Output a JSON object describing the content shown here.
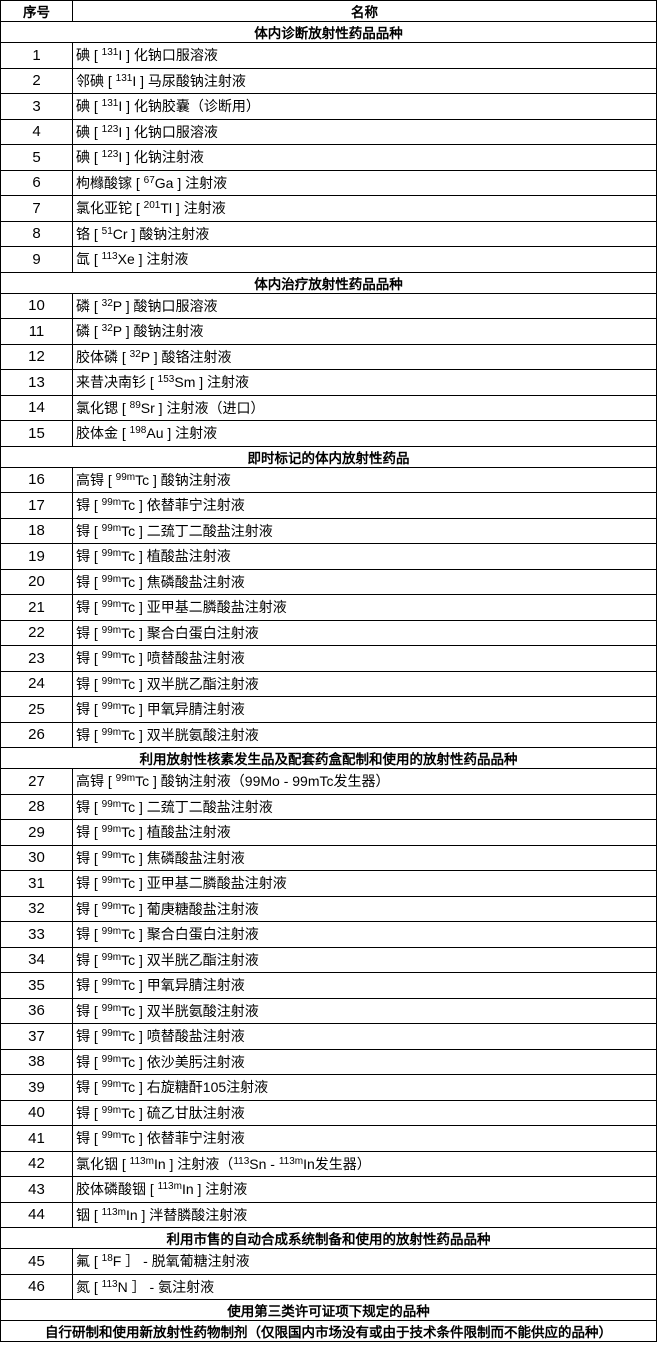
{
  "header": {
    "col_index": "序号",
    "col_name": "名称"
  },
  "sections": [
    {
      "title": "体内诊断放射性药品品种",
      "items": [
        {
          "no": "1",
          "name": [
            {
              "t": "碘 [ "
            },
            {
              "s": "131"
            },
            {
              "t": "I ] 化钠口服溶液"
            }
          ]
        },
        {
          "no": "2",
          "name": [
            {
              "t": "邻碘 [ "
            },
            {
              "s": "131"
            },
            {
              "t": "I ] 马尿酸钠注射液"
            }
          ]
        },
        {
          "no": "3",
          "name": [
            {
              "t": "碘 [ "
            },
            {
              "s": "131"
            },
            {
              "t": "I ] 化钠胶囊（诊断用）"
            }
          ]
        },
        {
          "no": "4",
          "name": [
            {
              "t": "碘 [ "
            },
            {
              "s": "123"
            },
            {
              "t": "I ] 化钠口服溶液"
            }
          ]
        },
        {
          "no": "5",
          "name": [
            {
              "t": "碘 [ "
            },
            {
              "s": "123"
            },
            {
              "t": "I ] 化钠注射液"
            }
          ]
        },
        {
          "no": "6",
          "name": [
            {
              "t": "枸橼酸镓 [ "
            },
            {
              "s": "67"
            },
            {
              "t": "Ga ] 注射液"
            }
          ]
        },
        {
          "no": "7",
          "name": [
            {
              "t": "氯化亚铊 [ "
            },
            {
              "s": "201"
            },
            {
              "t": "Tl ] 注射液"
            }
          ]
        },
        {
          "no": "8",
          "name": [
            {
              "t": "铬 [ "
            },
            {
              "s": "51"
            },
            {
              "t": "Cr ] 酸钠注射液"
            }
          ]
        },
        {
          "no": "9",
          "name": [
            {
              "t": "氙 [ "
            },
            {
              "s": "113"
            },
            {
              "t": "Xe ] 注射液"
            }
          ]
        }
      ]
    },
    {
      "title": "体内治疗放射性药品品种",
      "items": [
        {
          "no": "10",
          "name": [
            {
              "t": "磷 [ "
            },
            {
              "s": "32"
            },
            {
              "t": "P ] 酸钠口服溶液"
            }
          ]
        },
        {
          "no": "11",
          "name": [
            {
              "t": "磷 [ "
            },
            {
              "s": "32"
            },
            {
              "t": "P ] 酸钠注射液"
            }
          ]
        },
        {
          "no": "12",
          "name": [
            {
              "t": "胶体磷 [ "
            },
            {
              "s": "32"
            },
            {
              "t": "P ] 酸铬注射液"
            }
          ]
        },
        {
          "no": "13",
          "name": [
            {
              "t": "来昔决南钐 [ "
            },
            {
              "s": "153"
            },
            {
              "t": "Sm ] 注射液"
            }
          ]
        },
        {
          "no": "14",
          "name": [
            {
              "t": "氯化锶 [ "
            },
            {
              "s": "89"
            },
            {
              "t": "Sr ] 注射液（进口）"
            }
          ]
        },
        {
          "no": "15",
          "name": [
            {
              "t": "胶体金 [ "
            },
            {
              "s": "198"
            },
            {
              "t": "Au ] 注射液"
            }
          ]
        }
      ]
    },
    {
      "title": "即时标记的体内放射性药品",
      "items": [
        {
          "no": "16",
          "name": [
            {
              "t": "高锝 [ "
            },
            {
              "s": "99m"
            },
            {
              "t": "Tc ] 酸钠注射液"
            }
          ]
        },
        {
          "no": "17",
          "name": [
            {
              "t": "锝 [ "
            },
            {
              "s": "99m"
            },
            {
              "t": "Tc ] 依替菲宁注射液"
            }
          ]
        },
        {
          "no": "18",
          "name": [
            {
              "t": "锝 [ "
            },
            {
              "s": "99m"
            },
            {
              "t": "Tc ] 二巯丁二酸盐注射液"
            }
          ]
        },
        {
          "no": "19",
          "name": [
            {
              "t": "锝 [ "
            },
            {
              "s": "99m"
            },
            {
              "t": "Tc ] 植酸盐注射液"
            }
          ]
        },
        {
          "no": "20",
          "name": [
            {
              "t": "锝 [ "
            },
            {
              "s": "99m"
            },
            {
              "t": "Tc ] 焦磷酸盐注射液"
            }
          ]
        },
        {
          "no": "21",
          "name": [
            {
              "t": "锝 [ "
            },
            {
              "s": "99m"
            },
            {
              "t": "Tc ] 亚甲基二膦酸盐注射液"
            }
          ]
        },
        {
          "no": "22",
          "name": [
            {
              "t": "锝 [ "
            },
            {
              "s": "99m"
            },
            {
              "t": "Tc ] 聚合白蛋白注射液"
            }
          ]
        },
        {
          "no": "23",
          "name": [
            {
              "t": "锝 [ "
            },
            {
              "s": "99m"
            },
            {
              "t": "Tc ] 喷替酸盐注射液"
            }
          ]
        },
        {
          "no": "24",
          "name": [
            {
              "t": "锝 [ "
            },
            {
              "s": "99m"
            },
            {
              "t": "Tc ] 双半胱乙酯注射液"
            }
          ]
        },
        {
          "no": "25",
          "name": [
            {
              "t": "锝 [ "
            },
            {
              "s": "99m"
            },
            {
              "t": "Tc ] 甲氧异腈注射液"
            }
          ]
        },
        {
          "no": "26",
          "name": [
            {
              "t": "锝 [ "
            },
            {
              "s": "99m"
            },
            {
              "t": "Tc ] 双半胱氨酸注射液"
            }
          ]
        }
      ]
    },
    {
      "title": "利用放射性核素发生品及配套药盒配制和使用的放射性药品品种",
      "items": [
        {
          "no": "27",
          "name": [
            {
              "t": "高锝 [ "
            },
            {
              "s": "99m"
            },
            {
              "t": "Tc ] 酸钠注射液（99Mo - 99mTc发生器）"
            }
          ]
        },
        {
          "no": "28",
          "name": [
            {
              "t": "锝 [ "
            },
            {
              "s": "99m"
            },
            {
              "t": "Tc ] 二巯丁二酸盐注射液"
            }
          ]
        },
        {
          "no": "29",
          "name": [
            {
              "t": "锝 [ "
            },
            {
              "s": "99m"
            },
            {
              "t": "Tc ] 植酸盐注射液"
            }
          ]
        },
        {
          "no": "30",
          "name": [
            {
              "t": "锝 [ "
            },
            {
              "s": "99m"
            },
            {
              "t": "Tc ] 焦磷酸盐注射液"
            }
          ]
        },
        {
          "no": "31",
          "name": [
            {
              "t": "锝 [ "
            },
            {
              "s": "99m"
            },
            {
              "t": "Tc ] 亚甲基二膦酸盐注射液"
            }
          ]
        },
        {
          "no": "32",
          "name": [
            {
              "t": "锝 [ "
            },
            {
              "s": "99m"
            },
            {
              "t": "Tc ] 葡庚糖酸盐注射液"
            }
          ]
        },
        {
          "no": "33",
          "name": [
            {
              "t": "锝 [ "
            },
            {
              "s": "99m"
            },
            {
              "t": "Tc ] 聚合白蛋白注射液"
            }
          ]
        },
        {
          "no": "34",
          "name": [
            {
              "t": "锝 [ "
            },
            {
              "s": "99m"
            },
            {
              "t": "Tc ] 双半胱乙酯注射液"
            }
          ]
        },
        {
          "no": "35",
          "name": [
            {
              "t": "锝 [ "
            },
            {
              "s": "99m"
            },
            {
              "t": "Tc ] 甲氧异腈注射液"
            }
          ]
        },
        {
          "no": "36",
          "name": [
            {
              "t": "锝 [ "
            },
            {
              "s": "99m"
            },
            {
              "t": "Tc ] 双半胱氨酸注射液"
            }
          ]
        },
        {
          "no": "37",
          "name": [
            {
              "t": "锝 [ "
            },
            {
              "s": "99m"
            },
            {
              "t": "Tc ] 喷替酸盐注射液"
            }
          ]
        },
        {
          "no": "38",
          "name": [
            {
              "t": "锝 [ "
            },
            {
              "s": "99m"
            },
            {
              "t": "Tc ] 依沙美肟注射液"
            }
          ]
        },
        {
          "no": "39",
          "name": [
            {
              "t": "锝 [ "
            },
            {
              "s": "99m"
            },
            {
              "t": "Tc ] 右旋糖酐105注射液"
            }
          ]
        },
        {
          "no": "40",
          "name": [
            {
              "t": "锝 [ "
            },
            {
              "s": "99m"
            },
            {
              "t": "Tc ] 硫乙甘肽注射液"
            }
          ]
        },
        {
          "no": "41",
          "name": [
            {
              "t": "锝 [ "
            },
            {
              "s": "99m"
            },
            {
              "t": "Tc ] 依替菲宁注射液"
            }
          ]
        },
        {
          "no": "42",
          "name": [
            {
              "t": "氯化铟 [ "
            },
            {
              "s": "113m"
            },
            {
              "t": "In ] 注射液（"
            },
            {
              "s": "113"
            },
            {
              "t": "Sn - "
            },
            {
              "s": "113m"
            },
            {
              "t": "In发生器）"
            }
          ]
        },
        {
          "no": "43",
          "name": [
            {
              "t": "胶体磷酸铟 [ "
            },
            {
              "s": "113m"
            },
            {
              "t": "In ] 注射液"
            }
          ]
        },
        {
          "no": "44",
          "name": [
            {
              "t": "铟 [ "
            },
            {
              "s": "113m"
            },
            {
              "t": "In ] 泮替膦酸注射液"
            }
          ]
        }
      ]
    },
    {
      "title": "利用市售的自动合成系统制备和使用的放射性药品品种",
      "items": [
        {
          "no": "45",
          "name": [
            {
              "t": "氟 [ "
            },
            {
              "s": "18"
            },
            {
              "t": "F ］ - 脱氧葡糖注射液"
            }
          ]
        },
        {
          "no": "46",
          "name": [
            {
              "t": "氮 [ "
            },
            {
              "s": "113"
            },
            {
              "t": "N ］ - 氨注射液"
            }
          ]
        }
      ]
    },
    {
      "title": "使用第三类许可证项下规定的品种",
      "items": []
    },
    {
      "title": "自行研制和使用新放射性药物制剂（仅限国内市场没有或由于技术条件限制而不能供应的品种）",
      "items": []
    }
  ]
}
